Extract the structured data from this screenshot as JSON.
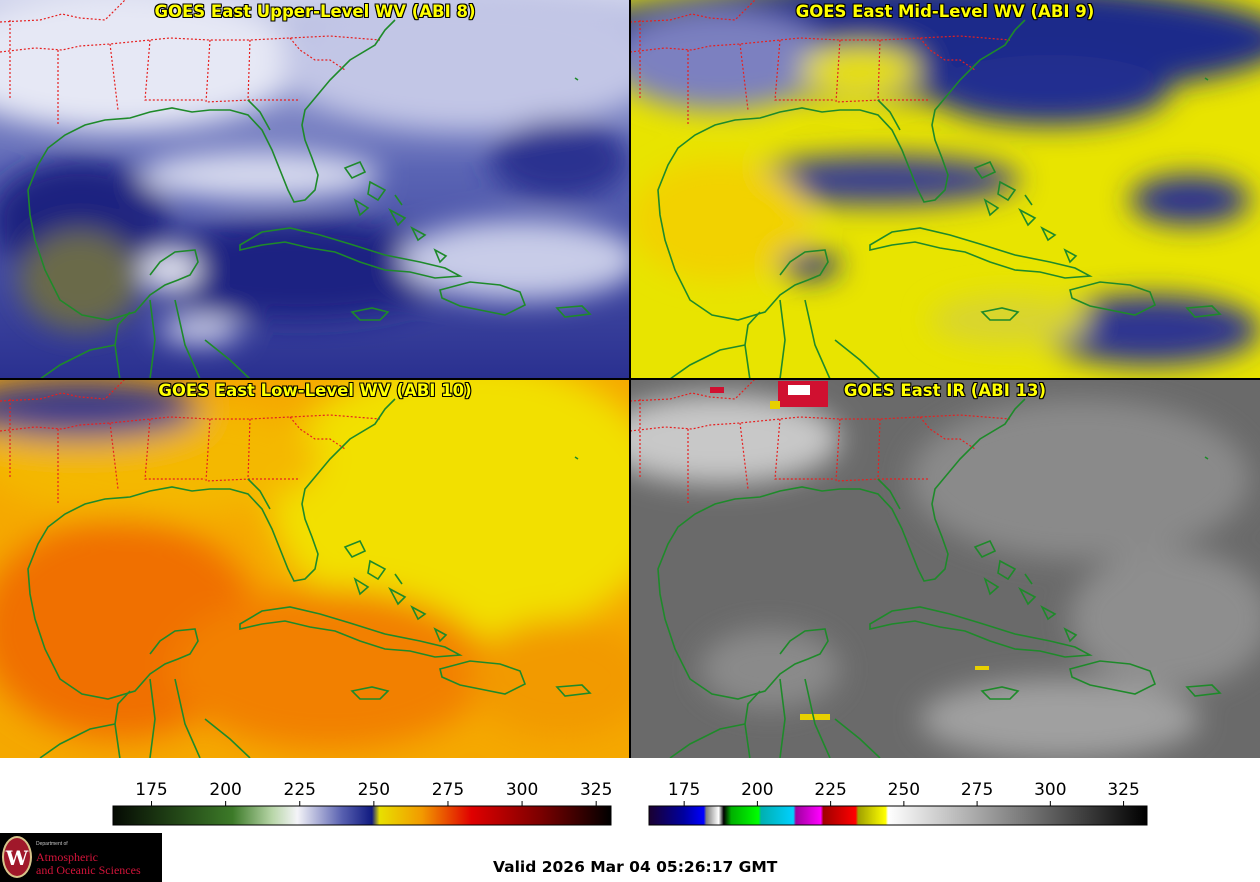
{
  "panels": [
    {
      "id": "upper",
      "title": "GOES East Upper-Level WV (ABI 8)"
    },
    {
      "id": "mid",
      "title": "GOES East Mid-Level WV (ABI 9)"
    },
    {
      "id": "low",
      "title": "GOES East Low-Level WV (ABI 10)"
    },
    {
      "id": "ir",
      "title": "GOES East IR (ABI 13)"
    }
  ],
  "colorbars": {
    "wv": {
      "ticks": [
        "175",
        "200",
        "225",
        "250",
        "275",
        "300",
        "325"
      ],
      "range": [
        162,
        330
      ]
    },
    "ir": {
      "ticks": [
        "175",
        "200",
        "225",
        "250",
        "275",
        "300",
        "325"
      ],
      "range": [
        163,
        333
      ]
    }
  },
  "logo": {
    "dept_line": "Department of",
    "line1": "Atmospheric",
    "line2": "and Oceanic Sciences",
    "seal_letter": "W"
  },
  "valid_time": "Valid 2026 Mar 04 05:26:17 GMT",
  "colors": {
    "coastline": "#1e8a2a",
    "state_border": "#e02020",
    "title_text": "#ffff00"
  }
}
